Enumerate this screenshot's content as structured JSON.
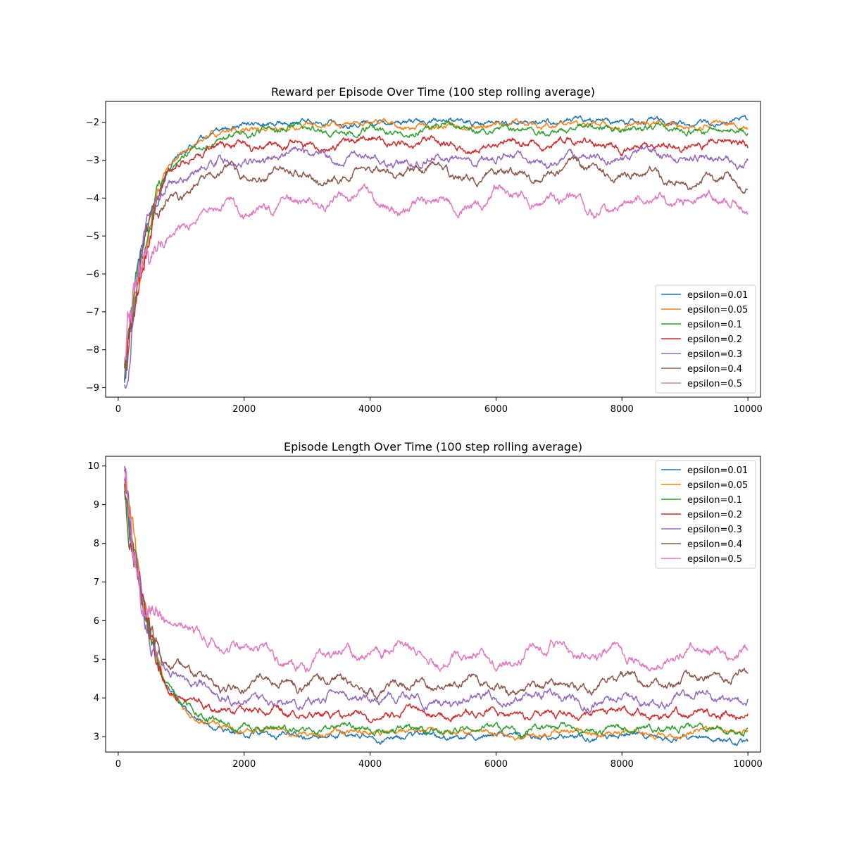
{
  "figure": {
    "background": "#ffffff"
  },
  "chart_data": [
    {
      "type": "line",
      "title": "Reward per Episode Over Time (100 step rolling average)",
      "xlabel": "",
      "ylabel": "",
      "xlim": [
        -200,
        10200
      ],
      "ylim": [
        -9.25,
        -1.45
      ],
      "xticks": [
        0,
        2000,
        4000,
        6000,
        8000,
        10000
      ],
      "xtick_labels": [
        "0",
        "2000",
        "4000",
        "6000",
        "8000",
        "10000"
      ],
      "yticks": [
        -9,
        -8,
        -7,
        -6,
        -5,
        -4,
        -3,
        -2
      ],
      "ytick_labels": [
        "−9",
        "−8",
        "−7",
        "−6",
        "−5",
        "−4",
        "−3",
        "−2"
      ],
      "grid": false,
      "legend_position": "lower right",
      "series": [
        {
          "name": "epsilon=0.01",
          "color": "#1f77b4",
          "x": [
            100,
            200,
            300,
            400,
            500,
            600,
            700,
            800,
            1000,
            1200,
            1500,
            2000,
            2500,
            3000,
            4000,
            5000,
            6000,
            7000,
            8000,
            9000,
            10000
          ],
          "y": [
            -8.7,
            -7.3,
            -6.3,
            -5.2,
            -4.5,
            -4.1,
            -3.6,
            -3.2,
            -2.8,
            -2.5,
            -2.3,
            -2.15,
            -2.05,
            -1.98,
            -2.0,
            -2.0,
            -2.0,
            -2.0,
            -2.0,
            -2.0,
            -1.95
          ],
          "noise": 0.07,
          "wave": 0.07
        },
        {
          "name": "epsilon=0.05",
          "color": "#ff7f0e",
          "x": [
            100,
            200,
            300,
            400,
            500,
            600,
            700,
            800,
            1000,
            1200,
            1500,
            2000,
            2500,
            3000,
            4000,
            5000,
            6000,
            7000,
            8000,
            9000,
            10000
          ],
          "y": [
            -8.5,
            -7.5,
            -6.5,
            -5.6,
            -4.8,
            -4.2,
            -3.7,
            -3.3,
            -2.9,
            -2.6,
            -2.35,
            -2.15,
            -2.08,
            -2.08,
            -2.08,
            -2.08,
            -2.08,
            -2.05,
            -2.08,
            -2.08,
            -2.1
          ],
          "noise": 0.07,
          "wave": 0.07
        },
        {
          "name": "epsilon=0.1",
          "color": "#2ca02c",
          "x": [
            100,
            200,
            300,
            400,
            500,
            600,
            700,
            800,
            1000,
            1200,
            1500,
            2000,
            2500,
            3000,
            4000,
            5000,
            6000,
            7000,
            8000,
            9000,
            10000
          ],
          "y": [
            -8.4,
            -7.2,
            -6.3,
            -5.5,
            -4.7,
            -4.1,
            -3.7,
            -3.3,
            -2.9,
            -2.6,
            -2.45,
            -2.3,
            -2.22,
            -2.2,
            -2.2,
            -2.2,
            -2.18,
            -2.2,
            -2.2,
            -2.2,
            -2.2
          ],
          "noise": 0.08,
          "wave": 0.09
        },
        {
          "name": "epsilon=0.2",
          "color": "#d62728",
          "x": [
            100,
            200,
            300,
            400,
            500,
            600,
            700,
            800,
            1000,
            1200,
            1500,
            2000,
            2500,
            3000,
            4000,
            5000,
            6000,
            7000,
            8000,
            9000,
            10000
          ],
          "y": [
            -8.5,
            -7.3,
            -6.4,
            -5.6,
            -4.9,
            -4.3,
            -3.8,
            -3.4,
            -3.0,
            -2.85,
            -2.75,
            -2.65,
            -2.6,
            -2.6,
            -2.55,
            -2.55,
            -2.6,
            -2.55,
            -2.6,
            -2.58,
            -2.65
          ],
          "noise": 0.09,
          "wave": 0.12
        },
        {
          "name": "epsilon=0.3",
          "color": "#9467bd",
          "x": [
            100,
            200,
            300,
            400,
            500,
            600,
            700,
            800,
            1000,
            1200,
            1500,
            2000,
            2500,
            3000,
            4000,
            5000,
            6000,
            7000,
            8000,
            9000,
            10000
          ],
          "y": [
            -8.9,
            -7.2,
            -6.1,
            -5.4,
            -4.8,
            -4.4,
            -4.0,
            -3.7,
            -3.4,
            -3.2,
            -3.1,
            -3.0,
            -2.95,
            -2.95,
            -2.95,
            -2.95,
            -3.0,
            -2.95,
            -2.95,
            -2.95,
            -3.0
          ],
          "noise": 0.1,
          "wave": 0.15
        },
        {
          "name": "epsilon=0.4",
          "color": "#8c564b",
          "x": [
            100,
            200,
            300,
            400,
            500,
            600,
            700,
            800,
            1000,
            1200,
            1500,
            2000,
            2500,
            3000,
            4000,
            5000,
            6000,
            7000,
            8000,
            9000,
            10000
          ],
          "y": [
            -8.5,
            -7.2,
            -6.2,
            -5.5,
            -4.9,
            -4.5,
            -4.2,
            -4.0,
            -3.8,
            -3.6,
            -3.45,
            -3.4,
            -3.4,
            -3.35,
            -3.35,
            -3.35,
            -3.3,
            -3.35,
            -3.35,
            -3.4,
            -3.75
          ],
          "noise": 0.1,
          "wave": 0.22
        },
        {
          "name": "epsilon=0.5",
          "color": "#e377c2",
          "x": [
            100,
            200,
            300,
            400,
            500,
            600,
            700,
            800,
            1000,
            1200,
            1500,
            2000,
            2500,
            3000,
            4000,
            5000,
            6000,
            7000,
            8000,
            9000,
            10000
          ],
          "y": [
            -8.4,
            -7.0,
            -6.2,
            -6.0,
            -5.9,
            -5.6,
            -5.3,
            -5.0,
            -4.8,
            -4.6,
            -4.3,
            -4.15,
            -4.1,
            -4.1,
            -4.15,
            -4.1,
            -4.05,
            -4.1,
            -4.1,
            -4.15,
            -4.1
          ],
          "noise": 0.12,
          "wave": 0.28
        }
      ]
    },
    {
      "type": "line",
      "title": "Episode Length Over Time (100 step rolling average)",
      "xlabel": "",
      "ylabel": "",
      "xlim": [
        -200,
        10200
      ],
      "ylim": [
        2.6,
        10.25
      ],
      "xticks": [
        0,
        2000,
        4000,
        6000,
        8000,
        10000
      ],
      "xtick_labels": [
        "0",
        "2000",
        "4000",
        "6000",
        "8000",
        "10000"
      ],
      "yticks": [
        3,
        4,
        5,
        6,
        7,
        8,
        9,
        10
      ],
      "ytick_labels": [
        "3",
        "4",
        "5",
        "6",
        "7",
        "8",
        "9",
        "10"
      ],
      "grid": false,
      "legend_position": "upper right",
      "series": [
        {
          "name": "epsilon=0.01",
          "color": "#1f77b4",
          "x": [
            100,
            200,
            300,
            400,
            500,
            600,
            700,
            800,
            1000,
            1200,
            1500,
            2000,
            2500,
            3000,
            4000,
            5000,
            6000,
            7000,
            8000,
            9000,
            10000
          ],
          "y": [
            9.7,
            8.2,
            7.1,
            6.2,
            5.5,
            5.0,
            4.6,
            4.3,
            3.8,
            3.5,
            3.3,
            3.15,
            3.05,
            2.98,
            3.0,
            3.0,
            3.0,
            3.0,
            3.0,
            3.0,
            2.95
          ],
          "noise": 0.07,
          "wave": 0.07
        },
        {
          "name": "epsilon=0.05",
          "color": "#ff7f0e",
          "x": [
            100,
            200,
            300,
            400,
            500,
            600,
            700,
            800,
            1000,
            1200,
            1500,
            2000,
            2500,
            3000,
            4000,
            5000,
            6000,
            7000,
            8000,
            9000,
            10000
          ],
          "y": [
            9.5,
            8.4,
            7.4,
            6.5,
            5.7,
            5.1,
            4.6,
            4.2,
            3.8,
            3.5,
            3.35,
            3.15,
            3.1,
            3.1,
            3.1,
            3.1,
            3.1,
            3.05,
            3.1,
            3.1,
            3.1
          ],
          "noise": 0.07,
          "wave": 0.07
        },
        {
          "name": "epsilon=0.1",
          "color": "#2ca02c",
          "x": [
            100,
            200,
            300,
            400,
            500,
            600,
            700,
            800,
            1000,
            1200,
            1500,
            2000,
            2500,
            3000,
            4000,
            5000,
            6000,
            7000,
            8000,
            9000,
            10000
          ],
          "y": [
            9.4,
            8.2,
            7.2,
            6.4,
            5.6,
            5.0,
            4.6,
            4.3,
            3.9,
            3.6,
            3.45,
            3.3,
            3.22,
            3.2,
            3.2,
            3.2,
            3.18,
            3.2,
            3.2,
            3.2,
            3.2
          ],
          "noise": 0.08,
          "wave": 0.09
        },
        {
          "name": "epsilon=0.2",
          "color": "#d62728",
          "x": [
            100,
            200,
            300,
            400,
            500,
            600,
            700,
            800,
            1000,
            1200,
            1500,
            2000,
            2500,
            3000,
            4000,
            5000,
            6000,
            7000,
            8000,
            9000,
            10000
          ],
          "y": [
            9.5,
            8.3,
            7.3,
            6.5,
            5.8,
            5.2,
            4.7,
            4.3,
            4.0,
            3.85,
            3.75,
            3.65,
            3.6,
            3.6,
            3.55,
            3.55,
            3.6,
            3.55,
            3.6,
            3.58,
            3.65
          ],
          "noise": 0.09,
          "wave": 0.12
        },
        {
          "name": "epsilon=0.3",
          "color": "#9467bd",
          "x": [
            100,
            200,
            300,
            400,
            500,
            600,
            700,
            800,
            1000,
            1200,
            1500,
            2000,
            2500,
            3000,
            4000,
            5000,
            6000,
            7000,
            8000,
            9000,
            10000
          ],
          "y": [
            9.9,
            8.2,
            7.1,
            6.4,
            5.8,
            5.4,
            5.0,
            4.7,
            4.4,
            4.2,
            4.1,
            4.0,
            3.95,
            3.95,
            3.95,
            3.95,
            4.0,
            3.95,
            3.95,
            3.95,
            4.0
          ],
          "noise": 0.1,
          "wave": 0.15
        },
        {
          "name": "epsilon=0.4",
          "color": "#8c564b",
          "x": [
            100,
            200,
            300,
            400,
            500,
            600,
            700,
            800,
            1000,
            1200,
            1500,
            2000,
            2500,
            3000,
            4000,
            5000,
            6000,
            7000,
            8000,
            9000,
            10000
          ],
          "y": [
            9.5,
            8.2,
            7.2,
            6.5,
            5.9,
            5.5,
            5.2,
            5.0,
            4.8,
            4.6,
            4.45,
            4.4,
            4.4,
            4.35,
            4.35,
            4.35,
            4.3,
            4.35,
            4.35,
            4.4,
            4.75
          ],
          "noise": 0.1,
          "wave": 0.22
        },
        {
          "name": "epsilon=0.5",
          "color": "#e377c2",
          "x": [
            100,
            200,
            300,
            400,
            500,
            600,
            700,
            800,
            1000,
            1200,
            1500,
            2000,
            2500,
            3000,
            4000,
            5000,
            6000,
            7000,
            8000,
            9000,
            10000
          ],
          "y": [
            9.4,
            8.0,
            7.2,
            7.0,
            6.9,
            6.6,
            6.3,
            6.0,
            5.8,
            5.6,
            5.3,
            5.15,
            5.1,
            5.1,
            5.15,
            5.1,
            5.05,
            5.1,
            5.1,
            5.15,
            5.1
          ],
          "noise": 0.12,
          "wave": 0.28
        }
      ]
    }
  ]
}
